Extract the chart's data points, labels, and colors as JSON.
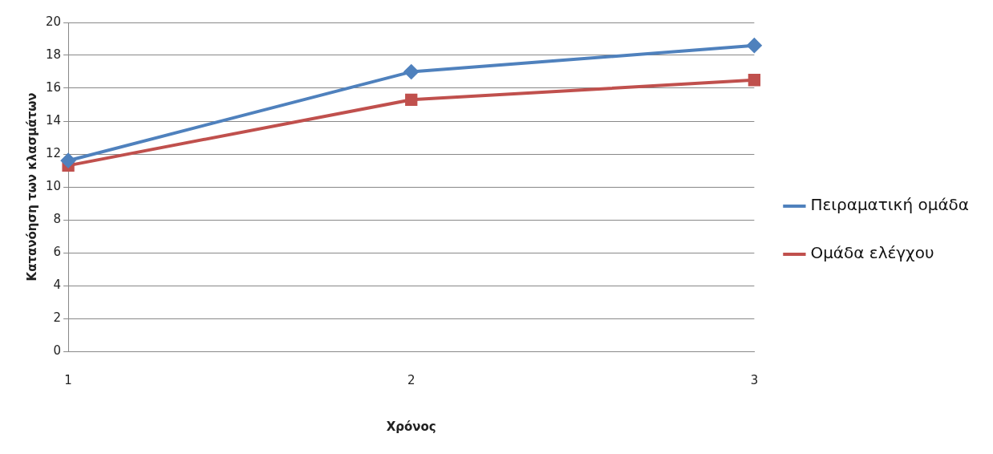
{
  "chart_data": {
    "type": "line",
    "xlabel": "Χρόνος",
    "ylabel": "Κατανόηση των κλασμάτων",
    "categories": [
      "1",
      "2",
      "3"
    ],
    "series": [
      {
        "name": "Πειραματική ομάδα",
        "color": "#4f81bd",
        "marker": "diamond",
        "values": [
          11.6,
          17.0,
          18.6
        ]
      },
      {
        "name": "Ομάδα ελέγχου",
        "color": "#c0504d",
        "marker": "square",
        "values": [
          11.3,
          15.3,
          16.5
        ]
      }
    ],
    "ylim": [
      0,
      20
    ],
    "yticks": [
      0,
      2,
      4,
      6,
      8,
      10,
      12,
      14,
      16,
      18,
      20
    ],
    "grid": "y",
    "legend": "right"
  }
}
